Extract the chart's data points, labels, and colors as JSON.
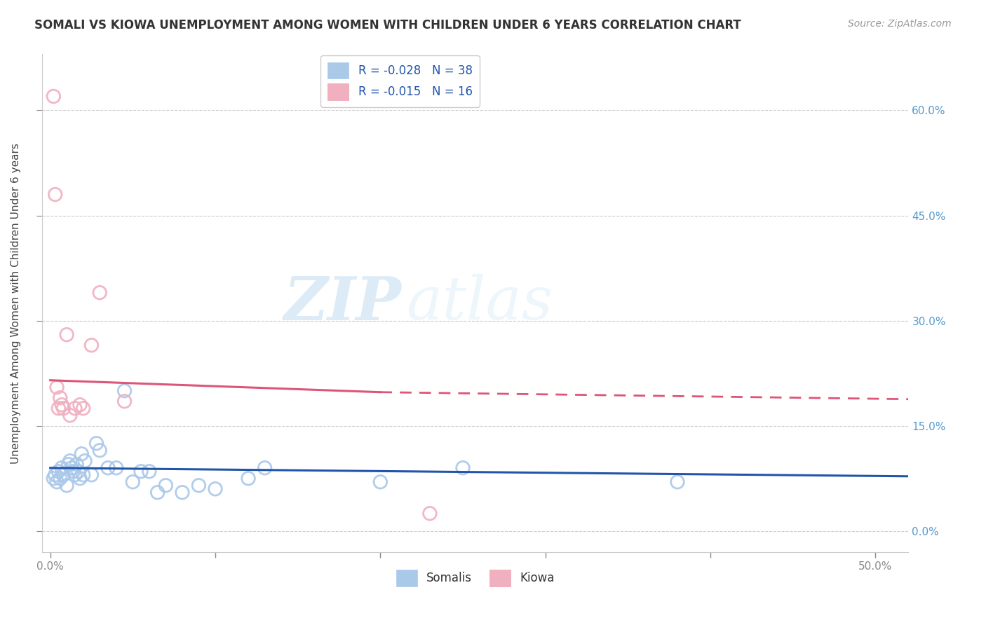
{
  "title": "SOMALI VS KIOWA UNEMPLOYMENT AMONG WOMEN WITH CHILDREN UNDER 6 YEARS CORRELATION CHART",
  "source": "Source: ZipAtlas.com",
  "ylabel": "Unemployment Among Women with Children Under 6 years",
  "xlim": [
    -0.5,
    52.0
  ],
  "ylim": [
    -3.0,
    68.0
  ],
  "xlabel_ticks": [
    0,
    10,
    20,
    30,
    40,
    50
  ],
  "xlabel_tick_labels": [
    "0.0%",
    "",
    "",
    "",
    "",
    "50.0%"
  ],
  "ylabel_ticks": [
    0,
    15,
    30,
    45,
    60
  ],
  "ylabel_tick_labels_right": [
    "0.0%",
    "15.0%",
    "30.0%",
    "45.0%",
    "60.0%"
  ],
  "somali_R": -0.028,
  "somali_N": 38,
  "kiowa_R": -0.015,
  "kiowa_N": 16,
  "somali_face_color": "#aac8e8",
  "kiowa_face_color": "#f0b0c0",
  "somali_line_color": "#2255aa",
  "kiowa_line_color": "#dd5577",
  "watermark_zip": "ZIP",
  "watermark_atlas": "atlas",
  "somali_x": [
    0.2,
    0.3,
    0.4,
    0.5,
    0.6,
    0.7,
    0.8,
    1.0,
    1.1,
    1.2,
    1.3,
    1.4,
    1.5,
    1.6,
    1.7,
    1.8,
    1.9,
    2.0,
    2.1,
    2.5,
    2.8,
    3.0,
    3.5,
    4.0,
    4.5,
    5.0,
    5.5,
    6.0,
    6.5,
    7.0,
    8.0,
    9.0,
    10.0,
    12.0,
    13.0,
    20.0,
    25.0,
    38.0
  ],
  "somali_y": [
    7.5,
    8.0,
    7.0,
    8.5,
    7.5,
    9.0,
    8.0,
    6.5,
    9.5,
    10.0,
    9.0,
    8.5,
    8.0,
    9.5,
    8.5,
    7.5,
    11.0,
    8.0,
    10.0,
    8.0,
    12.5,
    11.5,
    9.0,
    9.0,
    20.0,
    7.0,
    8.5,
    8.5,
    5.5,
    6.5,
    5.5,
    6.5,
    6.0,
    7.5,
    9.0,
    7.0,
    9.0,
    7.0
  ],
  "kiowa_x": [
    0.2,
    0.3,
    0.4,
    0.5,
    0.6,
    0.7,
    0.8,
    1.0,
    1.2,
    1.5,
    1.8,
    2.0,
    2.5,
    3.0,
    4.5,
    23.0
  ],
  "kiowa_y": [
    62.0,
    48.0,
    20.5,
    17.5,
    19.0,
    18.0,
    17.5,
    28.0,
    16.5,
    17.5,
    18.0,
    17.5,
    26.5,
    34.0,
    18.5,
    2.5
  ],
  "somali_trendline": [
    0.0,
    52.0,
    9.0,
    7.8
  ],
  "kiowa_solid_trendline": [
    0.0,
    20.0,
    21.5,
    19.8
  ],
  "kiowa_dashed_trendline": [
    20.0,
    52.0,
    19.8,
    18.8
  ]
}
